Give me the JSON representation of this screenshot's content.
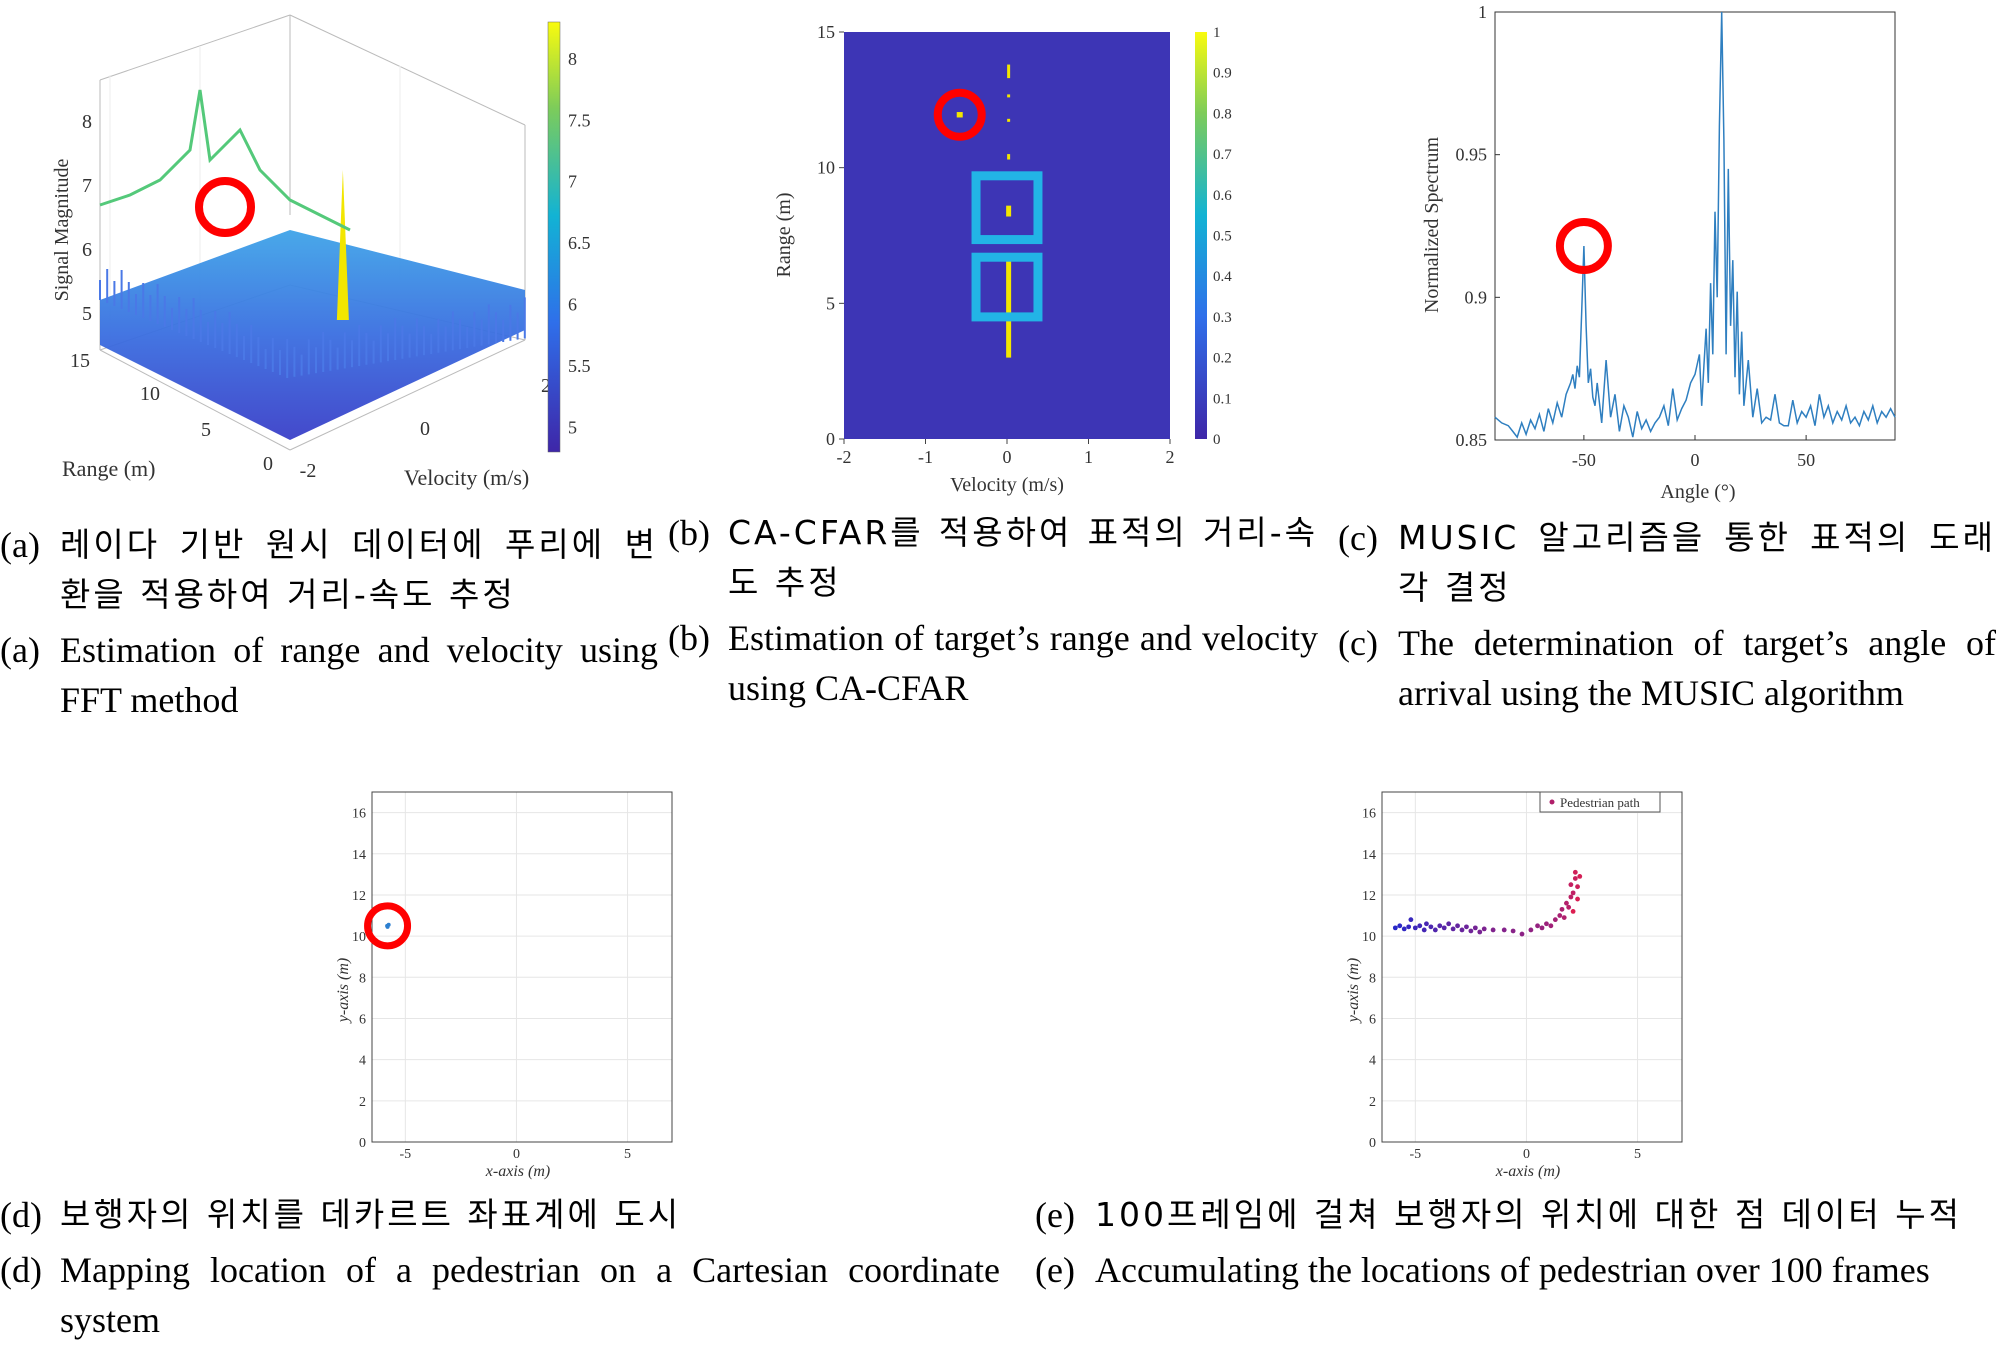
{
  "colors": {
    "blue": "#3f3fc0",
    "cyan": "#22b4e6",
    "yellow": "#f2e600",
    "red": "#ff0000",
    "line": "#2f7fc0",
    "plot_bg": "#3d35b5"
  },
  "chart_data": [
    {
      "id": "a",
      "type": "area",
      "zlabel": "Signal Magnitude",
      "xlabel": "Velocity (m/s)",
      "ylabel": "Range (m)",
      "xticks": [
        "-2",
        "0",
        "2"
      ],
      "yticks": [
        "0",
        "5",
        "10",
        "15"
      ],
      "zticks": [
        "5",
        "6",
        "7",
        "8"
      ],
      "colorbar_ticks": [
        "5",
        "5.5",
        "6",
        "6.5",
        "7",
        "7.5",
        "8"
      ],
      "xlim": [
        -2,
        2
      ],
      "ylim": [
        0,
        15
      ],
      "zlim": [
        4.8,
        8.3
      ],
      "peak": {
        "velocity": 0,
        "magnitude": 8.2
      }
    },
    {
      "id": "b",
      "type": "heatmap",
      "xlabel": "Velocity (m/s)",
      "ylabel": "Range (m)",
      "xticks": [
        "-2",
        "-1",
        "0",
        "1",
        "2"
      ],
      "yticks": [
        "0",
        "5",
        "10",
        "15"
      ],
      "colorbar_ticks": [
        "0",
        "0.1",
        "0.2",
        "0.3",
        "0.4",
        "0.5",
        "0.6",
        "0.7",
        "0.8",
        "0.9",
        "1"
      ],
      "xlim": [
        -2,
        2
      ],
      "ylim": [
        0,
        15
      ],
      "detections": [
        {
          "velocity": 0.02,
          "range_from": 3.0,
          "range_to": 6.8,
          "kind": "segment"
        },
        {
          "velocity": 0.02,
          "range_from": 8.2,
          "range_to": 8.6,
          "kind": "segment"
        },
        {
          "velocity": 0.02,
          "range_from": 10.3,
          "range_to": 10.5,
          "kind": "dot"
        },
        {
          "velocity": 0.02,
          "range_from": 11.7,
          "range_to": 11.8,
          "kind": "dot"
        },
        {
          "velocity": 0.02,
          "range_from": 12.6,
          "range_to": 12.7,
          "kind": "dot"
        },
        {
          "velocity": 0.02,
          "range_from": 13.3,
          "range_to": 13.8,
          "kind": "dash"
        },
        {
          "velocity": -0.58,
          "range_from": 11.85,
          "range_to": 12.05,
          "kind": "target"
        }
      ],
      "boxes": [
        {
          "velocity_from": -0.38,
          "velocity_to": 0.38,
          "range_from": 7.35,
          "range_to": 9.7
        },
        {
          "velocity_from": -0.38,
          "velocity_to": 0.38,
          "range_from": 4.5,
          "range_to": 6.7
        }
      ],
      "circle": {
        "velocity": -0.58,
        "range": 11.95
      }
    },
    {
      "id": "c",
      "type": "line",
      "xlabel": "Angle (°)",
      "ylabel": "Normalized Spectrum",
      "xticks": [
        "-50",
        "0",
        "50"
      ],
      "yticks": [
        "0.85",
        "0.9",
        "0.95",
        "1"
      ],
      "xlim": [
        -90,
        90
      ],
      "ylim": [
        0.85,
        1.0
      ],
      "x": [
        -90,
        -87,
        -84,
        -82,
        -80,
        -78,
        -76,
        -74,
        -72,
        -70,
        -68,
        -66,
        -64,
        -62,
        -60,
        -58,
        -56,
        -55,
        -54,
        -53,
        -52,
        -51,
        -50,
        -49,
        -48,
        -47,
        -46,
        -45,
        -44,
        -42,
        -40,
        -38,
        -36,
        -34,
        -32,
        -30,
        -28,
        -26,
        -24,
        -22,
        -20,
        -18,
        -16,
        -14,
        -12,
        -10,
        -8,
        -6,
        -4,
        -2,
        0,
        2,
        3,
        4,
        5,
        6,
        7,
        8,
        9,
        10,
        11,
        12,
        13,
        14,
        15,
        16,
        17,
        18,
        19,
        20,
        21,
        22,
        24,
        26,
        28,
        30,
        32,
        34,
        36,
        38,
        40,
        42,
        44,
        46,
        48,
        50,
        52,
        54,
        56,
        58,
        60,
        62,
        64,
        66,
        68,
        70,
        72,
        74,
        76,
        78,
        80,
        82,
        84,
        86,
        88,
        90
      ],
      "y": [
        0.858,
        0.856,
        0.855,
        0.853,
        0.851,
        0.856,
        0.852,
        0.857,
        0.854,
        0.859,
        0.853,
        0.861,
        0.856,
        0.863,
        0.858,
        0.866,
        0.87,
        0.873,
        0.868,
        0.876,
        0.872,
        0.895,
        0.918,
        0.89,
        0.87,
        0.875,
        0.865,
        0.862,
        0.87,
        0.856,
        0.878,
        0.858,
        0.866,
        0.853,
        0.862,
        0.858,
        0.851,
        0.86,
        0.854,
        0.857,
        0.853,
        0.856,
        0.858,
        0.862,
        0.855,
        0.868,
        0.857,
        0.861,
        0.864,
        0.87,
        0.873,
        0.88,
        0.862,
        0.876,
        0.889,
        0.87,
        0.905,
        0.88,
        0.93,
        0.9,
        0.96,
        1.0,
        0.955,
        0.88,
        0.945,
        0.89,
        0.913,
        0.872,
        0.902,
        0.866,
        0.888,
        0.862,
        0.878,
        0.858,
        0.868,
        0.856,
        0.858,
        0.857,
        0.866,
        0.856,
        0.855,
        0.855,
        0.864,
        0.856,
        0.86,
        0.858,
        0.862,
        0.855,
        0.866,
        0.858,
        0.862,
        0.856,
        0.86,
        0.857,
        0.862,
        0.856,
        0.858,
        0.855,
        0.86,
        0.857,
        0.862,
        0.856,
        0.86,
        0.858,
        0.861,
        0.858
      ],
      "circle": {
        "angle": -50,
        "value": 0.918
      }
    },
    {
      "id": "d",
      "type": "scatter",
      "xlabel": "x-axis (m)",
      "ylabel": "y-axis (m)",
      "xticks": [
        "-5",
        "0",
        "5"
      ],
      "yticks": [
        "0",
        "2",
        "4",
        "6",
        "8",
        "10",
        "12",
        "14",
        "16"
      ],
      "xlim": [
        -6.5,
        7
      ],
      "ylim": [
        0,
        17
      ],
      "grid": true,
      "points": [
        {
          "x": -5.8,
          "y": 10.45
        },
        {
          "x": -5.75,
          "y": 10.55
        },
        {
          "x": -5.82,
          "y": 10.5
        }
      ],
      "circle": {
        "x": -5.8,
        "y": 10.5
      }
    },
    {
      "id": "e",
      "type": "scatter",
      "xlabel": "x-axis (m)",
      "ylabel": "y-axis (m)",
      "xticks": [
        "-5",
        "0",
        "5"
      ],
      "yticks": [
        "0",
        "2",
        "4",
        "6",
        "8",
        "10",
        "12",
        "14",
        "16"
      ],
      "xlim": [
        -6.5,
        7
      ],
      "ylim": [
        0,
        17
      ],
      "grid": true,
      "legend": {
        "position": "top-right",
        "label": "Pedestrian path"
      },
      "points": [
        {
          "x": -5.9,
          "y": 10.4
        },
        {
          "x": -5.7,
          "y": 10.5
        },
        {
          "x": -5.5,
          "y": 10.35
        },
        {
          "x": -5.3,
          "y": 10.45
        },
        {
          "x": -5.2,
          "y": 10.8
        },
        {
          "x": -5.0,
          "y": 10.4
        },
        {
          "x": -4.8,
          "y": 10.5
        },
        {
          "x": -4.6,
          "y": 10.3
        },
        {
          "x": -4.5,
          "y": 10.6
        },
        {
          "x": -4.3,
          "y": 10.45
        },
        {
          "x": -4.1,
          "y": 10.3
        },
        {
          "x": -3.9,
          "y": 10.5
        },
        {
          "x": -3.7,
          "y": 10.4
        },
        {
          "x": -3.5,
          "y": 10.6
        },
        {
          "x": -3.3,
          "y": 10.35
        },
        {
          "x": -3.1,
          "y": 10.5
        },
        {
          "x": -2.9,
          "y": 10.3
        },
        {
          "x": -2.7,
          "y": 10.45
        },
        {
          "x": -2.5,
          "y": 10.25
        },
        {
          "x": -2.3,
          "y": 10.4
        },
        {
          "x": -2.1,
          "y": 10.2
        },
        {
          "x": -1.9,
          "y": 10.35
        },
        {
          "x": -1.5,
          "y": 10.3
        },
        {
          "x": -1.0,
          "y": 10.3
        },
        {
          "x": -0.6,
          "y": 10.25
        },
        {
          "x": -0.2,
          "y": 10.1
        },
        {
          "x": 0.2,
          "y": 10.3
        },
        {
          "x": 0.5,
          "y": 10.5
        },
        {
          "x": 0.7,
          "y": 10.4
        },
        {
          "x": 0.9,
          "y": 10.6
        },
        {
          "x": 1.1,
          "y": 10.5
        },
        {
          "x": 1.3,
          "y": 10.8
        },
        {
          "x": 1.5,
          "y": 11.0
        },
        {
          "x": 1.6,
          "y": 11.3
        },
        {
          "x": 1.7,
          "y": 10.9
        },
        {
          "x": 1.8,
          "y": 11.6
        },
        {
          "x": 1.9,
          "y": 11.4
        },
        {
          "x": 2.0,
          "y": 11.9
        },
        {
          "x": 2.1,
          "y": 12.1
        },
        {
          "x": 2.0,
          "y": 12.5
        },
        {
          "x": 2.2,
          "y": 12.8
        },
        {
          "x": 2.3,
          "y": 12.4
        },
        {
          "x": 2.2,
          "y": 13.1
        },
        {
          "x": 2.4,
          "y": 12.9
        },
        {
          "x": 2.3,
          "y": 11.8
        },
        {
          "x": 2.1,
          "y": 11.2
        }
      ]
    }
  ],
  "captions": {
    "a_kor_label": "(a)",
    "a_kor_text": "레이다 기반 원시 데이터에 푸리에 변환을 적용하여 거리-속도 추정",
    "a_eng_label": "(a)",
    "a_eng_text": "Estimation of range and velocity using FFT method",
    "b_kor_label": "(b)",
    "b_kor_text": "CA-CFAR를 적용하여 표적의 거리-속도 추정",
    "b_eng_label": "(b)",
    "b_eng_text": "Estimation of target’s range and velocity using CA-CFAR",
    "c_kor_label": "(c)",
    "c_kor_text": "MUSIC 알고리즘을 통한 표적의 도래각 결정",
    "c_eng_label": "(c)",
    "c_eng_text": "The determination of target’s angle of arrival using the MUSIC algorithm",
    "d_kor_label": "(d)",
    "d_kor_text": "보행자의 위치를 데카르트 좌표계에 도시",
    "d_eng_label": "(d)",
    "d_eng_text": "Mapping location of a pedestrian on a Cartesian coordinate system",
    "e_kor_label": "(e)",
    "e_kor_text": "100프레임에 걸쳐 보행자의 위치에 대한 점 데이터 누적",
    "e_eng_label": "(e)",
    "e_eng_text": "Accumulating the locations of pedestrian over 100 frames"
  }
}
